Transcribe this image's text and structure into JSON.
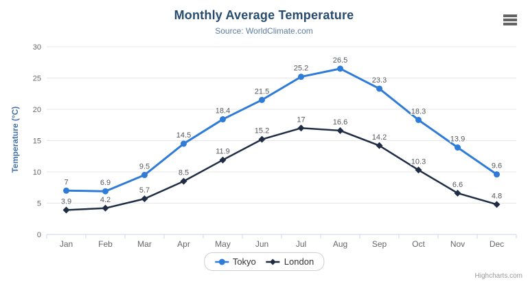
{
  "header": {
    "title": "Monthly Average Temperature",
    "subtitle": "Source: WorldClimate.com"
  },
  "chart_data": {
    "type": "line",
    "categories": [
      "Jan",
      "Feb",
      "Mar",
      "Apr",
      "May",
      "Jun",
      "Jul",
      "Aug",
      "Sep",
      "Oct",
      "Nov",
      "Dec"
    ],
    "series": [
      {
        "name": "Tokyo",
        "color": "#2f7cd8",
        "marker": "circle",
        "line_width": 3,
        "values": [
          7,
          6.9,
          9.5,
          14.5,
          18.4,
          21.5,
          25.2,
          26.5,
          23.3,
          18.3,
          13.9,
          9.6
        ]
      },
      {
        "name": "London",
        "color": "#1e2c44",
        "marker": "diamond",
        "line_width": 2.5,
        "values": [
          3.9,
          4.2,
          5.7,
          8.5,
          11.9,
          15.2,
          17,
          16.6,
          14.2,
          10.3,
          6.6,
          4.8
        ]
      }
    ],
    "title": "Monthly Average Temperature",
    "subtitle": "Source: WorldClimate.com",
    "xlabel": "",
    "ylabel": "Temperature (°C)",
    "ylim": [
      0,
      30
    ],
    "ytick_step": 5,
    "grid": true,
    "data_labels": true,
    "legend_position": "bottom"
  },
  "colors": {
    "title": "#274b6d",
    "subtitle": "#5b7da1",
    "axis_title": "#4572a7",
    "axis_labels": "#666666",
    "data_labels": "#54585e",
    "gridline": "#e6e6e6",
    "axis_line": "#ccd6eb",
    "legend_text": "#333333",
    "credits": "#999999",
    "menu_icon": "#636363"
  },
  "icons": {
    "menu": "hamburger-icon"
  },
  "credits": "Highcharts.com"
}
